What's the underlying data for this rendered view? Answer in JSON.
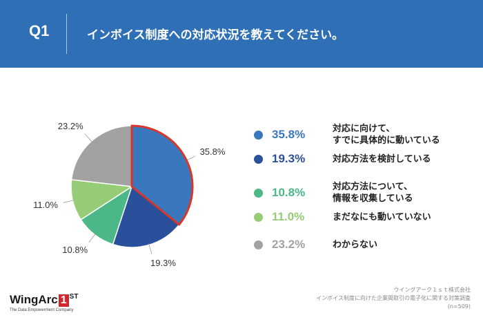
{
  "header": {
    "question_number": "Q1",
    "question_text": "インボイス制度への対応状況を教えてください。"
  },
  "chart_data": {
    "type": "pie",
    "start_angle_deg": 0,
    "direction": "clockwise",
    "slices": [
      {
        "label": "対応に向けて、\nすでに具体的に動いている",
        "value": 35.8,
        "value_label": "35.8%",
        "color": "#3a78bd",
        "highlight": true
      },
      {
        "label": "対応方法を検討している",
        "value": 19.3,
        "value_label": "19.3%",
        "color": "#2a4f9b",
        "highlight": false
      },
      {
        "label": "対応方法について、\n情報を収集している",
        "value": 10.8,
        "value_label": "10.8%",
        "color": "#4cb787",
        "highlight": false
      },
      {
        "label": "まだなにも動いていない",
        "value": 11.0,
        "value_label": "11.0%",
        "color": "#97cc77",
        "highlight": false
      },
      {
        "label": "わからない",
        "value": 23.2,
        "value_label": "23.2%",
        "color": "#a2a2a2",
        "highlight": false
      }
    ],
    "highlight_color": "#d9362b"
  },
  "footer": {
    "logo_text": "WingArc",
    "logo_number": "1",
    "logo_suffix": "ST",
    "logo_tagline": "The Data Empowerment Company",
    "source_line1": "ウイングアーク１ｓｔ株式会社",
    "source_line2": "インボイス制度に向けた企業間取引の電子化に関する対策調査",
    "source_line3": "(n=509)"
  }
}
